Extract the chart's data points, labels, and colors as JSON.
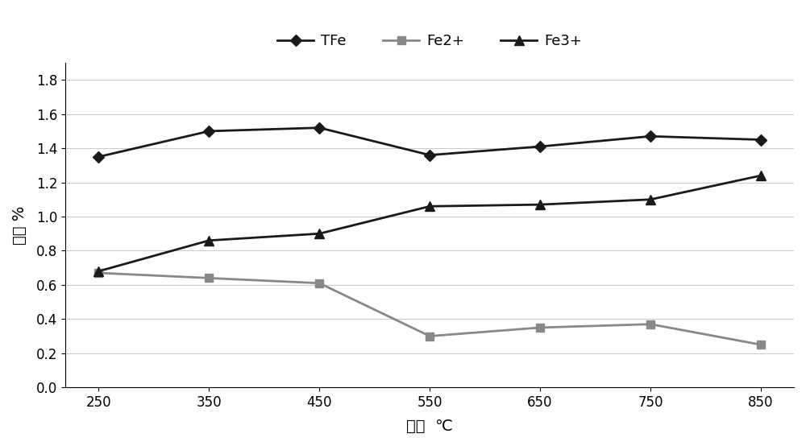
{
  "x": [
    250,
    350,
    450,
    550,
    650,
    750,
    850
  ],
  "TFe": [
    1.35,
    1.5,
    1.52,
    1.36,
    1.41,
    1.47,
    1.45
  ],
  "Fe2plus": [
    0.67,
    0.64,
    0.61,
    0.3,
    0.35,
    0.37,
    0.25
  ],
  "Fe3plus": [
    0.68,
    0.86,
    0.9,
    1.06,
    1.07,
    1.1,
    1.24
  ],
  "TFe_label": "TFe",
  "Fe2plus_label": "Fe2+",
  "Fe3plus_label": "Fe3+",
  "xlabel": "温度  ℃",
  "ylabel": "含量 %",
  "ylim": [
    0.0,
    1.9
  ],
  "yticks": [
    0.0,
    0.2,
    0.4,
    0.6,
    0.8,
    1.0,
    1.2,
    1.4,
    1.6,
    1.8
  ],
  "xticks": [
    250,
    350,
    450,
    550,
    650,
    750,
    850
  ],
  "line_color_TFe": "#1a1a1a",
  "line_color_Fe2": "#888888",
  "line_color_Fe3": "#1a1a1a",
  "bg_color": "#ffffff",
  "grid_color": "#cccccc",
  "figsize": [
    10.0,
    5.54
  ],
  "dpi": 100
}
